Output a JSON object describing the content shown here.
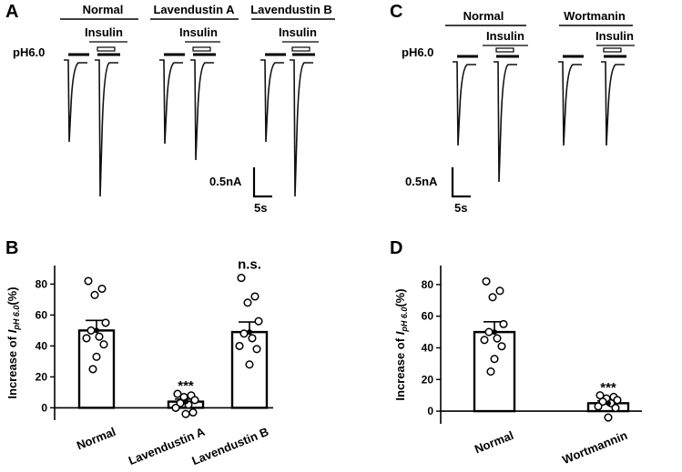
{
  "panels": {
    "A": "A",
    "B": "B",
    "C": "C",
    "D": "D"
  },
  "traces": {
    "ph_label": "pH6.0",
    "insulin_label": "Insulin",
    "scale_current": "0.5nA",
    "scale_time": "5s",
    "panel_A_conditions": [
      "Normal",
      "Lavendustin A",
      "Lavendustin B"
    ],
    "panel_C_conditions": [
      "Normal",
      "Wortmanin"
    ]
  },
  "chart_data": [
    {
      "panel": "B",
      "type": "bar",
      "ylabel_prefix": "Increase of ",
      "ylabel_var": "I",
      "ylabel_sub": "pH 6.0",
      "ylabel_suffix": "(%)",
      "ylim": [
        -8,
        92
      ],
      "yticks": [
        0,
        20,
        40,
        60,
        80
      ],
      "categories": [
        "Normal",
        "Lavendustin A",
        "Lavendustin B"
      ],
      "values": [
        50,
        4,
        49
      ],
      "sem": [
        6.5,
        1.6,
        6.5
      ],
      "points": [
        [
          82,
          77,
          73,
          55,
          50,
          46,
          45,
          41,
          33,
          25
        ],
        [
          9,
          8,
          7,
          5,
          3,
          2,
          0,
          -3,
          -4
        ],
        [
          84,
          72,
          68,
          56,
          48,
          45,
          40,
          38,
          28
        ]
      ],
      "annotations": [
        "",
        "***",
        "n.s."
      ]
    },
    {
      "panel": "D",
      "type": "bar",
      "ylabel_prefix": "Increase of ",
      "ylabel_var": "I",
      "ylabel_sub": "pH 6.0",
      "ylabel_suffix": "(%)",
      "ylim": [
        -8,
        92
      ],
      "yticks": [
        0,
        20,
        40,
        60,
        80
      ],
      "categories": [
        "Normal",
        "Wortmannin"
      ],
      "values": [
        50,
        5
      ],
      "sem": [
        6.5,
        1.5
      ],
      "points": [
        [
          82,
          76,
          72,
          55,
          50,
          46,
          45,
          41,
          33,
          25
        ],
        [
          10,
          9,
          8,
          7,
          6,
          5,
          3,
          2,
          -4
        ]
      ],
      "annotations": [
        "",
        "***"
      ]
    }
  ]
}
